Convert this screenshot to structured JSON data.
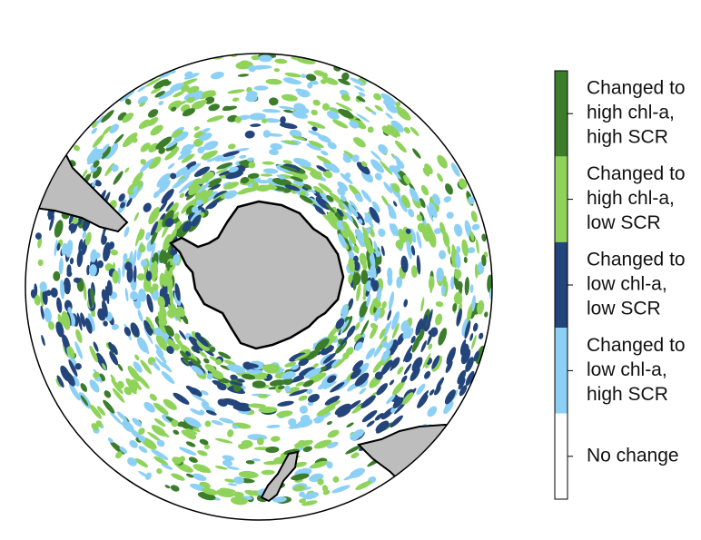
{
  "legend": {
    "items": [
      {
        "color": "#3b7d2b",
        "lines": [
          "Changed to",
          "high chl-a,",
          "high SCR"
        ]
      },
      {
        "color": "#8fd35b",
        "lines": [
          "Changed to",
          "high chl-a,",
          "low SCR"
        ]
      },
      {
        "color": "#23457b",
        "lines": [
          "Changed to",
          "low chl-a,",
          "low SCR"
        ]
      },
      {
        "color": "#8dd0f5",
        "lines": [
          "Changed to",
          "low chl-a,",
          "high SCR"
        ]
      },
      {
        "color": "#ffffff",
        "lines": [
          "No change"
        ]
      }
    ]
  }
}
